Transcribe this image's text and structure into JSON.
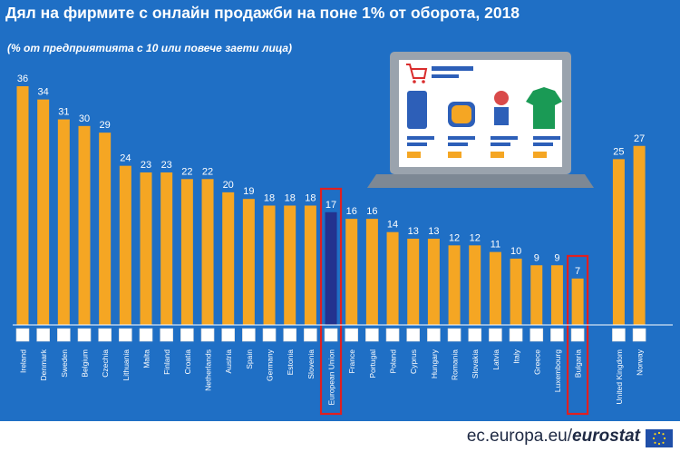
{
  "header": {
    "title": "Дял на фирмите с онлайн продажби на поне 1% от оборота, 2018",
    "subtitle": "(% от предприятията с 10 или повече заети лица)"
  },
  "footer": {
    "source_site": "ec.europa.eu/",
    "source_brand": "eurostat"
  },
  "colors": {
    "background": "#1f6fc5",
    "bar_country": "#f5a623",
    "bar_eu": "#23328f",
    "highlight_border": "#e02020",
    "label_text": "#ffffff"
  },
  "icons": [
    "shopping-cart-icon",
    "laptop-icon",
    "eu-flag-icon"
  ],
  "chart_data": {
    "type": "bar",
    "title": "Дял на фирмите с онлайн продажби на поне 1% от оборота, 2018",
    "subtitle": "(% от предприятията с 10 или повече заети лица)",
    "categories": [
      "Ireland",
      "Denmark",
      "Sweden",
      "Belgium",
      "Czechia",
      "Lithuania",
      "Malta",
      "Finland",
      "Croatia",
      "Netherlands",
      "Austria",
      "Spain",
      "Germany",
      "Estonia",
      "Slovenia",
      "European Union",
      "France",
      "Portugal",
      "Poland",
      "Cyprus",
      "Hungary",
      "Romania",
      "Slovakia",
      "Latvia",
      "Italy",
      "Greece",
      "Luxembourg",
      "Bulgaria",
      "United Kingdom",
      "Norway"
    ],
    "values": [
      36,
      34,
      31,
      30,
      29,
      24,
      23,
      23,
      22,
      22,
      20,
      19,
      18,
      18,
      18,
      17,
      16,
      16,
      14,
      13,
      13,
      12,
      12,
      11,
      10,
      9,
      9,
      7,
      25,
      27
    ],
    "highlighted": [
      "European Union",
      "Bulgaria"
    ],
    "ylim": [
      0,
      36
    ],
    "grid": false,
    "value_labels": true
  }
}
